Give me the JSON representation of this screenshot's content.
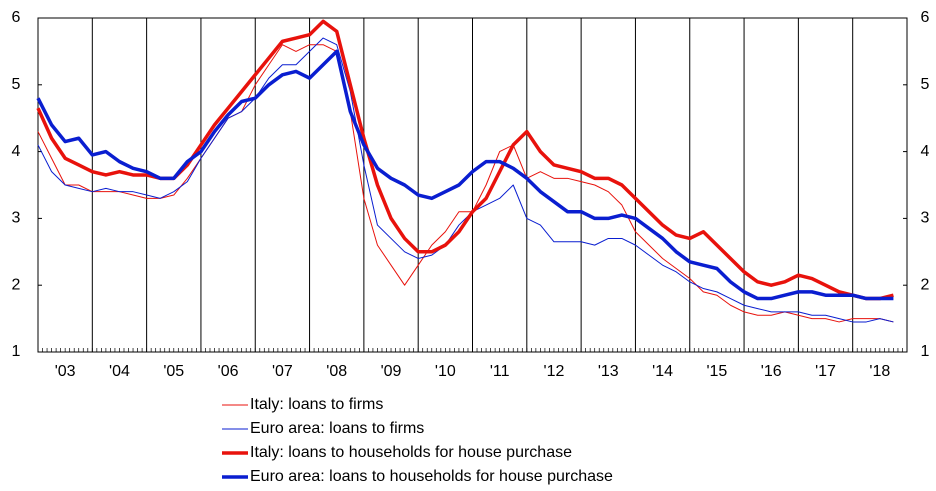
{
  "chart_data": {
    "type": "line",
    "x": [
      2003.0,
      2003.25,
      2003.5,
      2003.75,
      2004.0,
      2004.25,
      2004.5,
      2004.75,
      2005.0,
      2005.25,
      2005.5,
      2005.75,
      2006.0,
      2006.25,
      2006.5,
      2006.75,
      2007.0,
      2007.25,
      2007.5,
      2007.75,
      2008.0,
      2008.25,
      2008.5,
      2008.75,
      2009.0,
      2009.25,
      2009.5,
      2009.75,
      2010.0,
      2010.25,
      2010.5,
      2010.75,
      2011.0,
      2011.25,
      2011.5,
      2011.75,
      2012.0,
      2012.25,
      2012.5,
      2012.75,
      2013.0,
      2013.25,
      2013.5,
      2013.75,
      2014.0,
      2014.25,
      2014.5,
      2014.75,
      2015.0,
      2015.25,
      2015.5,
      2015.75,
      2016.0,
      2016.25,
      2016.5,
      2016.75,
      2017.0,
      2017.25,
      2017.5,
      2017.75,
      2018.0,
      2018.25,
      2018.5,
      2018.75
    ],
    "series": [
      {
        "name": "Italy: loans to firms",
        "color": "#e8120c",
        "width": 1,
        "values": [
          4.3,
          3.9,
          3.5,
          3.5,
          3.4,
          3.4,
          3.4,
          3.35,
          3.3,
          3.3,
          3.35,
          3.6,
          3.9,
          4.2,
          4.5,
          4.6,
          5.0,
          5.3,
          5.6,
          5.5,
          5.6,
          5.6,
          5.5,
          4.6,
          3.3,
          2.6,
          2.3,
          2.0,
          2.3,
          2.6,
          2.8,
          3.1,
          3.1,
          3.5,
          4.0,
          4.1,
          3.6,
          3.7,
          3.6,
          3.6,
          3.55,
          3.5,
          3.4,
          3.2,
          2.8,
          2.6,
          2.4,
          2.25,
          2.1,
          1.9,
          1.85,
          1.7,
          1.6,
          1.55,
          1.55,
          1.6,
          1.55,
          1.5,
          1.5,
          1.45,
          1.5,
          1.5,
          1.5,
          1.45
        ]
      },
      {
        "name": "Euro area: loans to firms",
        "color": "#0a1ed0",
        "width": 1,
        "values": [
          4.1,
          3.7,
          3.5,
          3.45,
          3.4,
          3.45,
          3.4,
          3.4,
          3.35,
          3.3,
          3.4,
          3.55,
          3.9,
          4.2,
          4.5,
          4.6,
          4.8,
          5.1,
          5.3,
          5.3,
          5.5,
          5.7,
          5.6,
          4.9,
          3.8,
          2.9,
          2.7,
          2.5,
          2.4,
          2.45,
          2.6,
          2.9,
          3.1,
          3.2,
          3.3,
          3.5,
          3.0,
          2.9,
          2.65,
          2.65,
          2.65,
          2.6,
          2.7,
          2.7,
          2.6,
          2.45,
          2.3,
          2.2,
          2.05,
          1.95,
          1.9,
          1.8,
          1.7,
          1.65,
          1.6,
          1.6,
          1.6,
          1.55,
          1.55,
          1.5,
          1.45,
          1.45,
          1.5,
          1.45
        ]
      },
      {
        "name": "Italy: loans to households for house purchase",
        "color": "#e8120c",
        "width": 3.5,
        "values": [
          4.65,
          4.2,
          3.9,
          3.8,
          3.7,
          3.65,
          3.7,
          3.65,
          3.65,
          3.6,
          3.6,
          3.8,
          4.1,
          4.4,
          4.65,
          4.9,
          5.15,
          5.4,
          5.65,
          5.7,
          5.75,
          5.95,
          5.8,
          5.0,
          4.2,
          3.5,
          3.0,
          2.7,
          2.5,
          2.5,
          2.6,
          2.8,
          3.1,
          3.3,
          3.7,
          4.1,
          4.3,
          4.0,
          3.8,
          3.75,
          3.7,
          3.6,
          3.6,
          3.5,
          3.3,
          3.1,
          2.9,
          2.75,
          2.7,
          2.8,
          2.6,
          2.4,
          2.2,
          2.05,
          2.0,
          2.05,
          2.15,
          2.1,
          2.0,
          1.9,
          1.85,
          1.8,
          1.8,
          1.85
        ]
      },
      {
        "name": "Euro area: loans to households for house purchase",
        "color": "#0a1ed0",
        "width": 3.5,
        "values": [
          4.8,
          4.4,
          4.15,
          4.2,
          3.95,
          4.0,
          3.85,
          3.75,
          3.7,
          3.6,
          3.6,
          3.85,
          4.0,
          4.3,
          4.55,
          4.75,
          4.8,
          5.0,
          5.15,
          5.2,
          5.1,
          5.3,
          5.5,
          4.6,
          4.1,
          3.75,
          3.6,
          3.5,
          3.35,
          3.3,
          3.4,
          3.5,
          3.7,
          3.85,
          3.85,
          3.75,
          3.6,
          3.4,
          3.25,
          3.1,
          3.1,
          3.0,
          3.0,
          3.05,
          3.0,
          2.85,
          2.7,
          2.5,
          2.35,
          2.3,
          2.25,
          2.05,
          1.9,
          1.8,
          1.8,
          1.85,
          1.9,
          1.9,
          1.85,
          1.85,
          1.85,
          1.8,
          1.8,
          1.8
        ]
      }
    ],
    "xlim": [
      2003,
      2019
    ],
    "xticks": [
      {
        "value": 2003.5,
        "label": "'03"
      },
      {
        "value": 2004.5,
        "label": "'04"
      },
      {
        "value": 2005.5,
        "label": "'05"
      },
      {
        "value": 2006.5,
        "label": "'06"
      },
      {
        "value": 2007.5,
        "label": "'07"
      },
      {
        "value": 2008.5,
        "label": "'08"
      },
      {
        "value": 2009.5,
        "label": "'09"
      },
      {
        "value": 2010.5,
        "label": "'10"
      },
      {
        "value": 2011.5,
        "label": "'11"
      },
      {
        "value": 2012.5,
        "label": "'12"
      },
      {
        "value": 2013.5,
        "label": "'13"
      },
      {
        "value": 2014.5,
        "label": "'14"
      },
      {
        "value": 2015.5,
        "label": "'15"
      },
      {
        "value": 2016.5,
        "label": "'16"
      },
      {
        "value": 2017.5,
        "label": "'17"
      },
      {
        "value": 2018.5,
        "label": "'18"
      }
    ],
    "year_lines": [
      2004,
      2005,
      2006,
      2007,
      2008,
      2009,
      2010,
      2011,
      2012,
      2013,
      2014,
      2015,
      2016,
      2017,
      2018
    ],
    "ylim": [
      1,
      6
    ],
    "yticks": [
      1,
      2,
      3,
      4,
      5,
      6
    ],
    "y2lim": [
      1,
      6
    ],
    "y2ticks": [
      1,
      2,
      3,
      4,
      5,
      6
    ],
    "legend": "bottom"
  }
}
